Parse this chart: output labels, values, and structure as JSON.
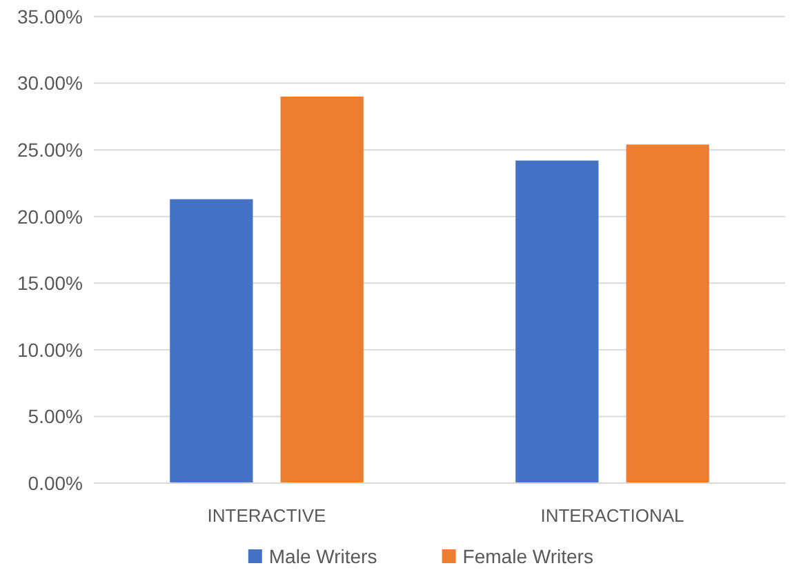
{
  "chart_data": {
    "type": "bar",
    "categories": [
      "INTERACTIVE",
      "INTERACTIONAL"
    ],
    "series": [
      {
        "name": "Male Writers",
        "color": "#4472c4",
        "values": [
          21.3,
          24.2
        ]
      },
      {
        "name": "Female Writers",
        "color": "#ed7d31",
        "values": [
          29.0,
          25.4
        ]
      }
    ],
    "ylim": [
      0,
      35
    ],
    "yticks": [
      {
        "value": 0,
        "label": "0.00%"
      },
      {
        "value": 5,
        "label": "5.00%"
      },
      {
        "value": 10,
        "label": "10.00%"
      },
      {
        "value": 15,
        "label": "15.00%"
      },
      {
        "value": 20,
        "label": "20.00%"
      },
      {
        "value": 25,
        "label": "25.00%"
      },
      {
        "value": 30,
        "label": "30.00%"
      },
      {
        "value": 35,
        "label": "35.00%"
      }
    ],
    "grid": "y",
    "legend": "bottom"
  }
}
